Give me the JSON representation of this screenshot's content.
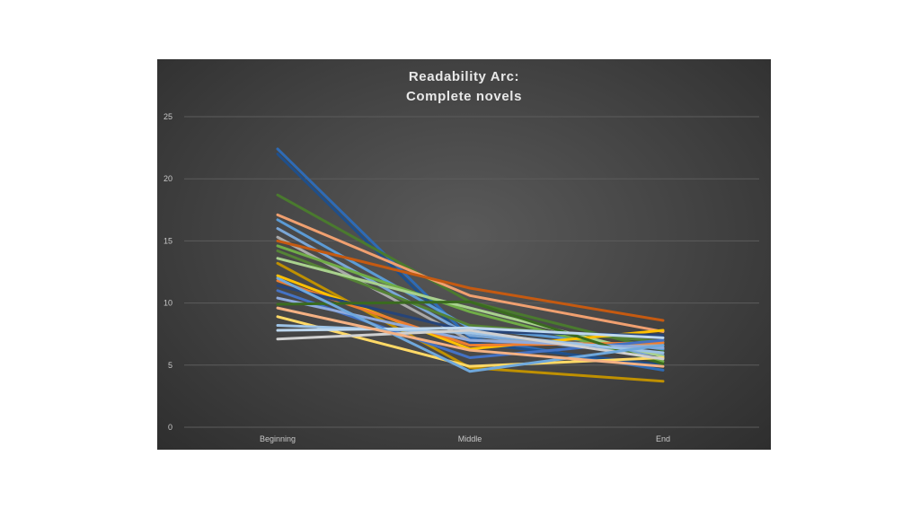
{
  "chart_data": {
    "type": "line",
    "title_lines": [
      "Readability Arc:",
      "Complete novels"
    ],
    "xlabel": "",
    "ylabel": "",
    "categories": [
      "Beginning",
      "Middle",
      "End"
    ],
    "ylim": [
      0,
      25
    ],
    "yticks": [
      "0",
      "5",
      "10",
      "15",
      "20",
      "25"
    ],
    "grid": true,
    "legend": "none",
    "series": [
      {
        "values": [
          22.4,
          7.2,
          4.6
        ],
        "color": "#2e6bb5"
      },
      {
        "values": [
          22.0,
          6.8,
          5.0
        ],
        "color": "#1f4f8a"
      },
      {
        "values": [
          18.7,
          10.1,
          6.2
        ],
        "color": "#4a7a2e"
      },
      {
        "values": [
          17.1,
          10.6,
          7.7
        ],
        "color": "#f0a070"
      },
      {
        "values": [
          16.7,
          8.0,
          6.3
        ],
        "color": "#5b9bd5"
      },
      {
        "values": [
          16.0,
          7.4,
          5.8
        ],
        "color": "#7aa6d6"
      },
      {
        "values": [
          15.3,
          7.0,
          6.6
        ],
        "color": "#a9a9a9"
      },
      {
        "values": [
          15.0,
          11.2,
          8.6
        ],
        "color": "#c55a11"
      },
      {
        "values": [
          14.6,
          9.3,
          5.3
        ],
        "color": "#70ad47"
      },
      {
        "values": [
          14.2,
          8.2,
          6.9
        ],
        "color": "#548235"
      },
      {
        "values": [
          13.6,
          9.6,
          5.7
        ],
        "color": "#a9d18e"
      },
      {
        "values": [
          13.2,
          4.8,
          3.7
        ],
        "color": "#bf9000"
      },
      {
        "values": [
          12.2,
          6.3,
          7.8
        ],
        "color": "#ffc000"
      },
      {
        "values": [
          11.8,
          6.6,
          6.8
        ],
        "color": "#ed7d31"
      },
      {
        "values": [
          11.4,
          7.7,
          7.4
        ],
        "color": "#264478"
      },
      {
        "values": [
          11.0,
          5.6,
          7.0
        ],
        "color": "#4472c4"
      },
      {
        "values": [
          10.4,
          7.0,
          6.4
        ],
        "color": "#8faadc"
      },
      {
        "values": [
          9.9,
          10.1,
          5.1
        ],
        "color": "#3a6b1f"
      },
      {
        "values": [
          8.9,
          4.9,
          5.6
        ],
        "color": "#ffd966"
      },
      {
        "values": [
          8.2,
          7.6,
          6.0
        ],
        "color": "#9dc3e6"
      },
      {
        "values": [
          7.8,
          8.0,
          7.2
        ],
        "color": "#bdd7ee"
      },
      {
        "values": [
          7.1,
          7.8,
          5.5
        ],
        "color": "#d0d0d0"
      },
      {
        "values": [
          12.0,
          4.5,
          6.6
        ],
        "color": "#6fa8dc"
      },
      {
        "values": [
          9.6,
          6.2,
          4.9
        ],
        "color": "#f4b183"
      }
    ]
  }
}
